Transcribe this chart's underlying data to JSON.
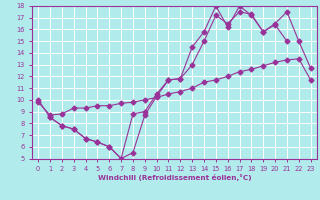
{
  "xlabel": "Windchill (Refroidissement éolien,°C)",
  "background_color": "#b2ebeb",
  "grid_color": "#ffffff",
  "line_color": "#993399",
  "xlim": [
    -0.5,
    23.5
  ],
  "ylim": [
    5,
    18
  ],
  "xticks": [
    0,
    1,
    2,
    3,
    4,
    5,
    6,
    7,
    8,
    9,
    10,
    11,
    12,
    13,
    14,
    15,
    16,
    17,
    18,
    19,
    20,
    21,
    22,
    23
  ],
  "yticks": [
    5,
    6,
    7,
    8,
    9,
    10,
    11,
    12,
    13,
    14,
    15,
    16,
    17,
    18
  ],
  "line1_x": [
    0,
    1,
    2,
    3,
    4,
    5,
    6,
    7,
    8,
    9,
    10,
    11,
    12,
    13,
    14,
    15,
    16,
    17,
    18,
    19,
    20,
    21
  ],
  "line1_y": [
    10,
    8.5,
    7.8,
    7.5,
    6.7,
    6.4,
    6.0,
    5.0,
    5.5,
    8.7,
    10.3,
    11.7,
    11.8,
    14.5,
    15.8,
    18.0,
    16.2,
    18.0,
    17.2,
    15.8,
    16.4,
    15.0
  ],
  "line2_x": [
    0,
    1,
    2,
    3,
    4,
    5,
    6,
    7,
    8,
    9,
    10,
    11,
    12,
    13,
    14,
    15,
    16,
    17,
    18,
    19,
    20,
    21,
    22,
    23
  ],
  "line2_y": [
    9.8,
    8.7,
    8.8,
    9.3,
    9.3,
    9.5,
    9.5,
    9.7,
    9.8,
    10.0,
    10.2,
    10.5,
    10.7,
    11.0,
    11.5,
    11.7,
    12.0,
    12.4,
    12.6,
    12.9,
    13.2,
    13.4,
    13.5,
    11.7
  ],
  "line3_x": [
    1,
    2,
    3,
    4,
    5,
    6,
    7,
    8,
    9,
    10,
    11,
    12,
    13,
    14,
    15,
    16,
    17,
    18,
    19,
    20,
    21,
    22,
    23
  ],
  "line3_y": [
    8.5,
    7.8,
    7.5,
    6.7,
    6.4,
    6.0,
    5.0,
    8.8,
    9.0,
    10.5,
    11.7,
    11.8,
    13.0,
    15.0,
    17.2,
    16.5,
    17.5,
    17.3,
    15.8,
    16.5,
    17.5,
    15.0,
    12.7
  ]
}
